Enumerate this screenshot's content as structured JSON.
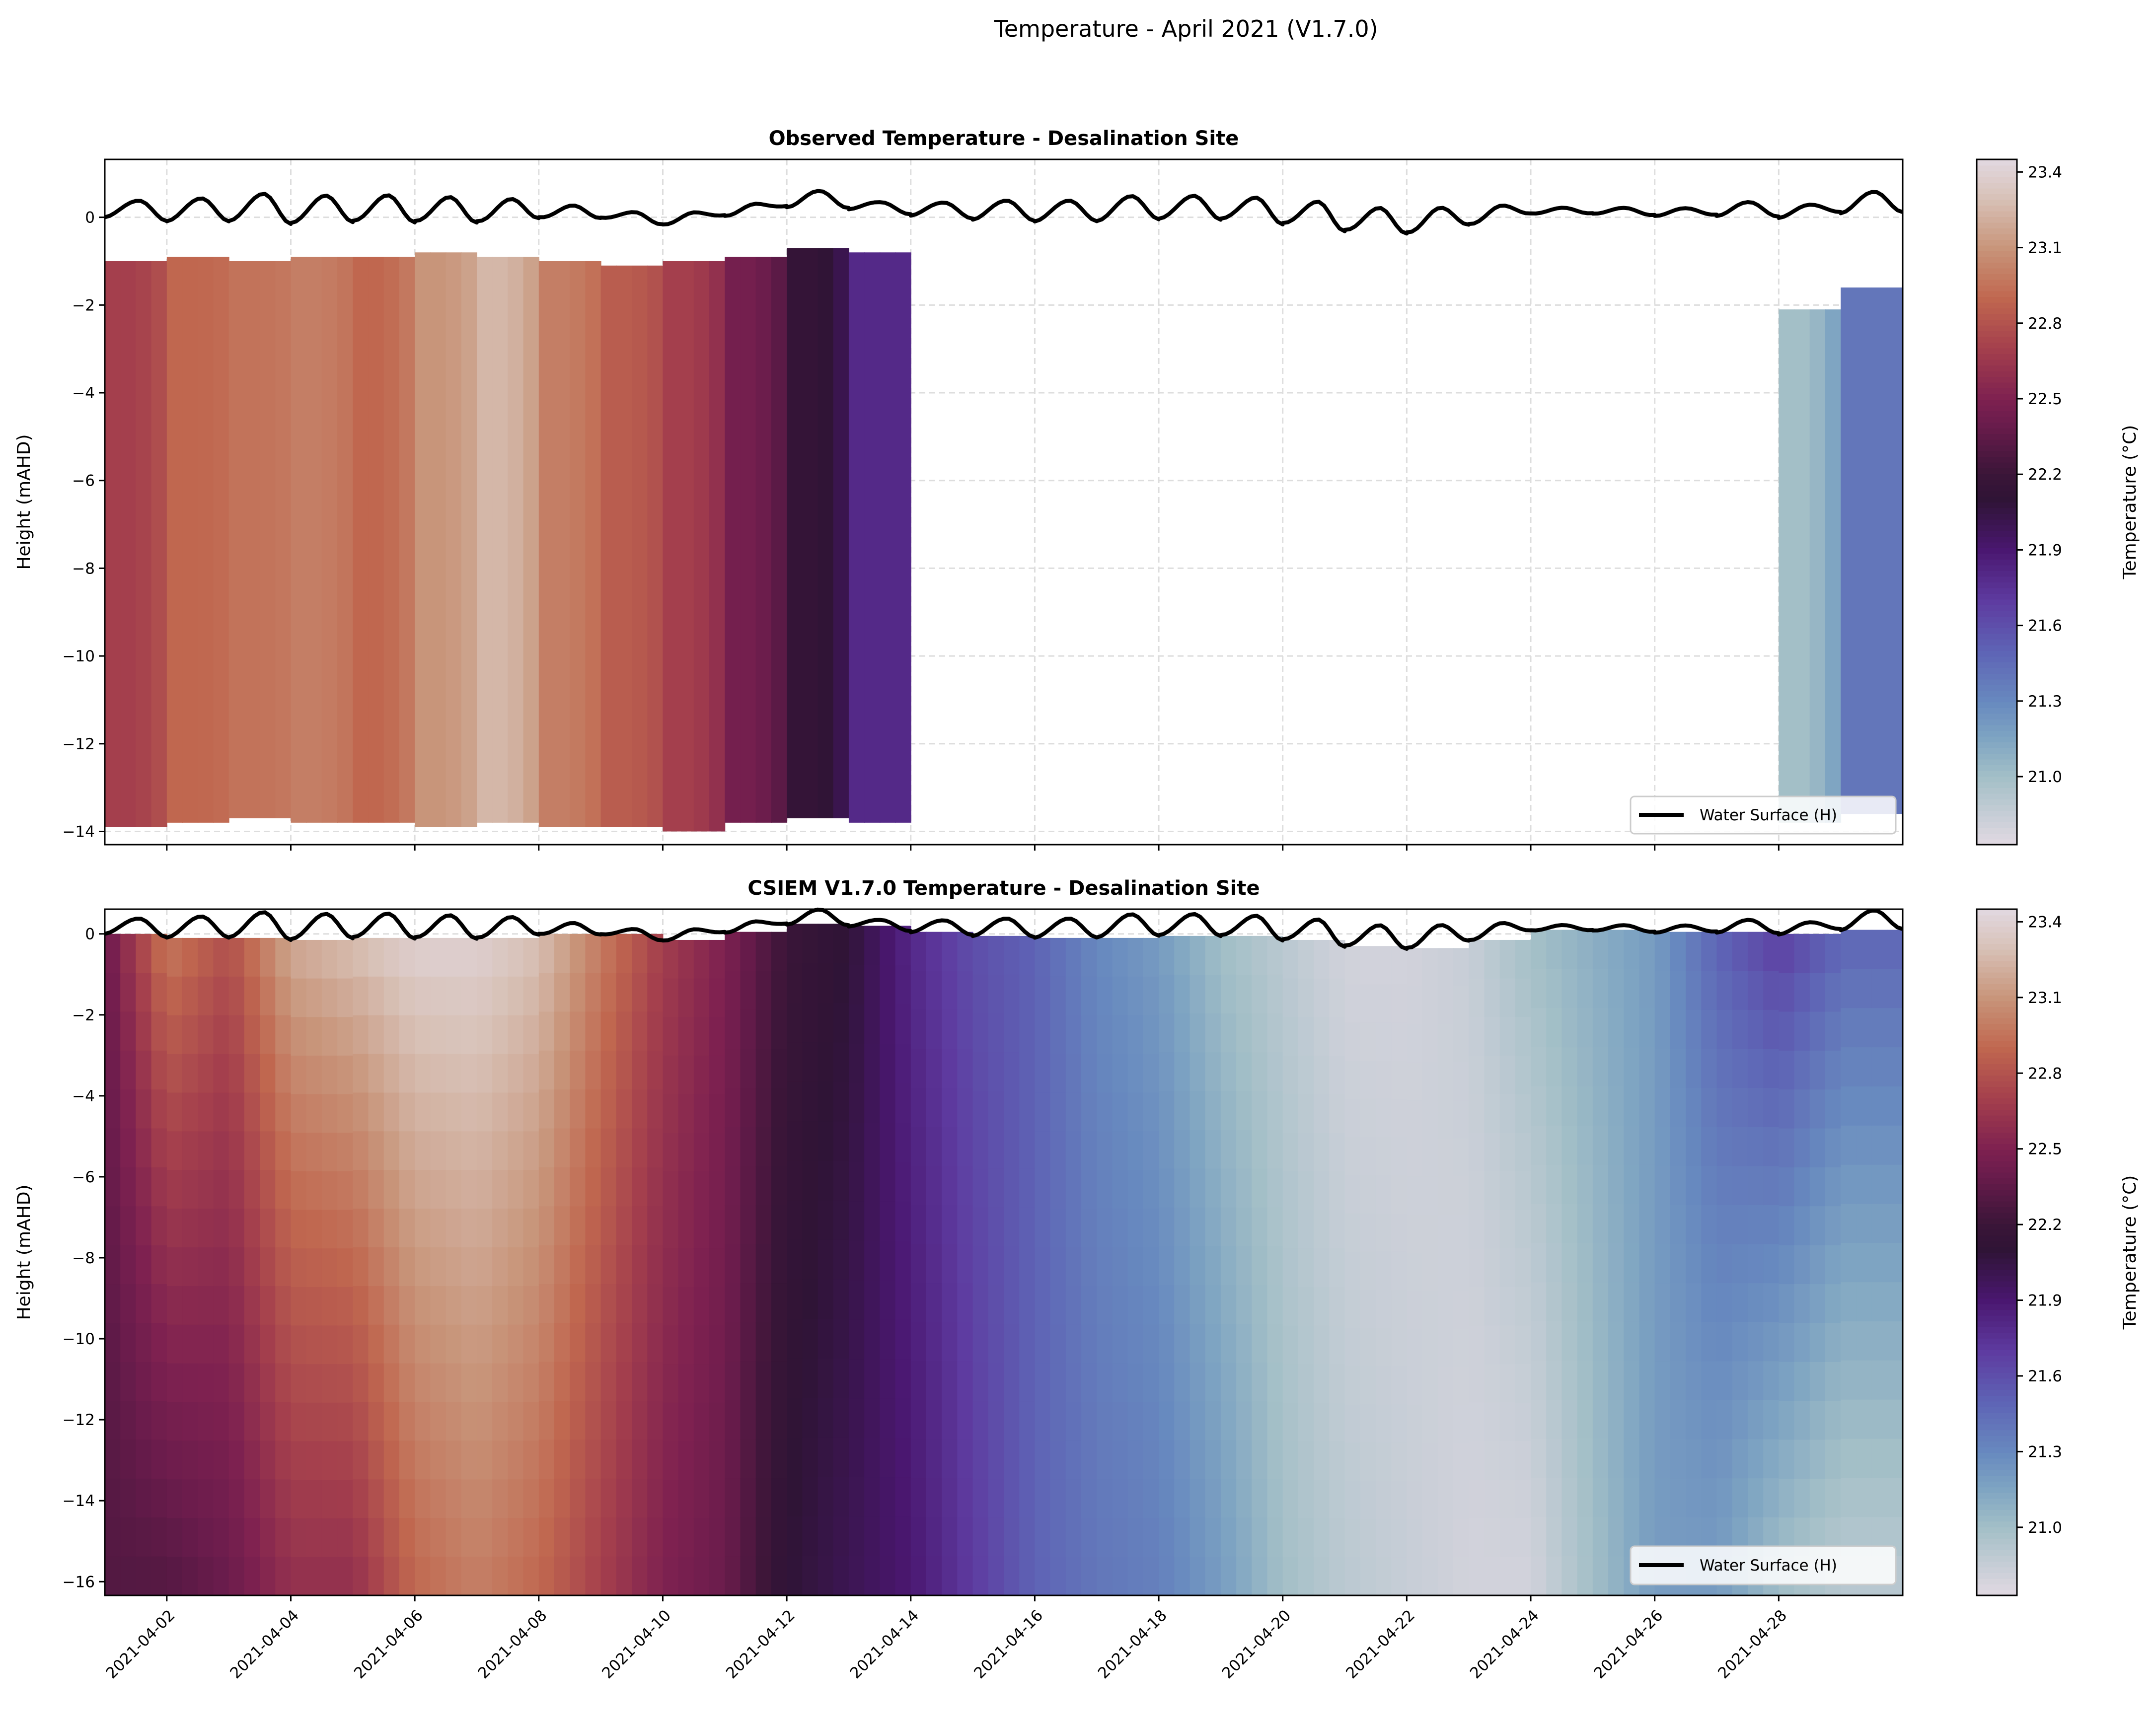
{
  "chart_data": [
    {
      "type": "heatmap",
      "suptitle": "Temperature - April 2021 (V1.7.0)",
      "title": "Observed Temperature - Desalination Site",
      "ylabel": "Height (mAHD)",
      "colorbar_label": "Temperature (°C)",
      "colormap": "twilight_shifted",
      "clim": [
        20.73,
        23.45
      ],
      "colorbar_ticks": [
        "21.0",
        "21.3",
        "21.6",
        "21.9",
        "22.2",
        "22.5",
        "22.8",
        "23.1",
        "23.4"
      ],
      "xlim": [
        "2021-04-01",
        "2021-04-30"
      ],
      "ylim": [
        -14.3,
        1.32
      ],
      "yticks": [
        "0",
        "−2",
        "−4",
        "−6",
        "−8",
        "−10",
        "−12",
        "−14"
      ],
      "grid": true,
      "legend": {
        "label": "Water Surface (H)",
        "placement": "lower right"
      },
      "days": [
        "2021-04-01",
        "2021-04-02",
        "2021-04-03",
        "2021-04-04",
        "2021-04-05",
        "2021-04-06",
        "2021-04-07",
        "2021-04-08",
        "2021-04-09",
        "2021-04-10",
        "2021-04-11",
        "2021-04-12",
        "2021-04-13",
        "2021-04-14",
        "2021-04-15",
        "2021-04-16",
        "2021-04-17",
        "2021-04-18",
        "2021-04-19",
        "2021-04-20",
        "2021-04-21",
        "2021-04-22",
        "2021-04-23",
        "2021-04-24",
        "2021-04-25",
        "2021-04-26",
        "2021-04-27",
        "2021-04-28",
        "2021-04-29"
      ],
      "temperature": [
        22.7,
        22.9,
        22.95,
        23.0,
        22.9,
        23.1,
        23.25,
        23.0,
        22.85,
        22.7,
        22.45,
        22.15,
        21.8,
        null,
        null,
        null,
        null,
        null,
        null,
        null,
        null,
        null,
        null,
        null,
        null,
        null,
        null,
        21.0,
        21.4
      ],
      "top_height": [
        -1.0,
        -0.9,
        -1.0,
        -0.9,
        -0.9,
        -0.8,
        -0.9,
        -1.0,
        -1.1,
        -1.0,
        -0.9,
        -0.7,
        -0.8,
        null,
        null,
        null,
        null,
        null,
        null,
        null,
        null,
        null,
        null,
        null,
        null,
        null,
        null,
        -2.1,
        -1.6
      ],
      "bottom_height": [
        -13.9,
        -13.8,
        -13.7,
        -13.8,
        -13.8,
        -13.9,
        -13.8,
        -13.9,
        -13.9,
        -14.0,
        -13.8,
        -13.7,
        -13.8,
        null,
        null,
        null,
        null,
        null,
        null,
        null,
        null,
        null,
        null,
        null,
        null,
        null,
        null,
        -13.8,
        -13.6
      ]
    },
    {
      "type": "heatmap",
      "title": "CSIEM V1.7.0 Temperature - Desalination Site",
      "ylabel": "Height (mAHD)",
      "colorbar_label": "Temperature (°C)",
      "colormap": "twilight_shifted",
      "clim": [
        20.73,
        23.45
      ],
      "colorbar_ticks": [
        "21.0",
        "21.3",
        "21.6",
        "21.9",
        "22.2",
        "22.5",
        "22.8",
        "23.1",
        "23.4"
      ],
      "xlim": [
        "2021-04-01",
        "2021-04-30"
      ],
      "ylim": [
        -16.34,
        0.61
      ],
      "yticks": [
        "0",
        "−2",
        "−4",
        "−6",
        "−8",
        "−10",
        "−12",
        "−14",
        "−16"
      ],
      "xticks": [
        "2021-04-02",
        "2021-04-04",
        "2021-04-06",
        "2021-04-08",
        "2021-04-10",
        "2021-04-12",
        "2021-04-14",
        "2021-04-16",
        "2021-04-18",
        "2021-04-20",
        "2021-04-22",
        "2021-04-24",
        "2021-04-26",
        "2021-04-28"
      ],
      "legend": {
        "label": "Water Surface (H)",
        "placement": "lower right"
      },
      "bottom_height": -16.34,
      "surface_temperature": [
        22.4,
        23.0,
        22.8,
        23.2,
        23.3,
        23.4,
        23.4,
        23.3,
        23.0,
        22.7,
        22.5,
        22.2,
        22.1,
        21.8,
        21.6,
        21.5,
        21.3,
        21.2,
        21.0,
        20.9,
        20.8,
        20.8,
        20.85,
        21.0,
        21.1,
        21.2,
        21.5,
        21.7,
        21.5
      ],
      "bottom_temperature": [
        22.3,
        22.3,
        22.4,
        22.6,
        22.6,
        22.9,
        23.0,
        22.9,
        22.7,
        22.5,
        22.4,
        22.1,
        22.0,
        21.9,
        21.7,
        21.5,
        21.4,
        21.35,
        21.2,
        21.0,
        20.9,
        20.85,
        20.8,
        20.8,
        21.0,
        21.2,
        21.2,
        21.0,
        20.9
      ]
    }
  ],
  "water_surface": {
    "label": "Water Surface (H)",
    "daily_high": [
      0.4,
      0.45,
      0.55,
      0.5,
      0.5,
      0.45,
      0.4,
      0.25,
      0.1,
      0.1,
      0.3,
      0.6,
      0.35,
      0.35,
      0.4,
      0.4,
      0.5,
      0.5,
      0.45,
      0.35,
      0.2,
      0.2,
      0.25,
      0.2,
      0.2,
      0.2,
      0.35,
      0.3,
      0.6
    ],
    "daily_low": [
      0.0,
      -0.1,
      -0.1,
      -0.15,
      -0.1,
      -0.1,
      -0.1,
      0.0,
      0.0,
      -0.15,
      0.05,
      0.25,
      0.2,
      0.05,
      -0.05,
      -0.1,
      -0.1,
      -0.05,
      -0.05,
      -0.15,
      -0.3,
      -0.35,
      -0.15,
      0.1,
      0.1,
      0.05,
      0.05,
      0.0,
      0.1
    ]
  }
}
